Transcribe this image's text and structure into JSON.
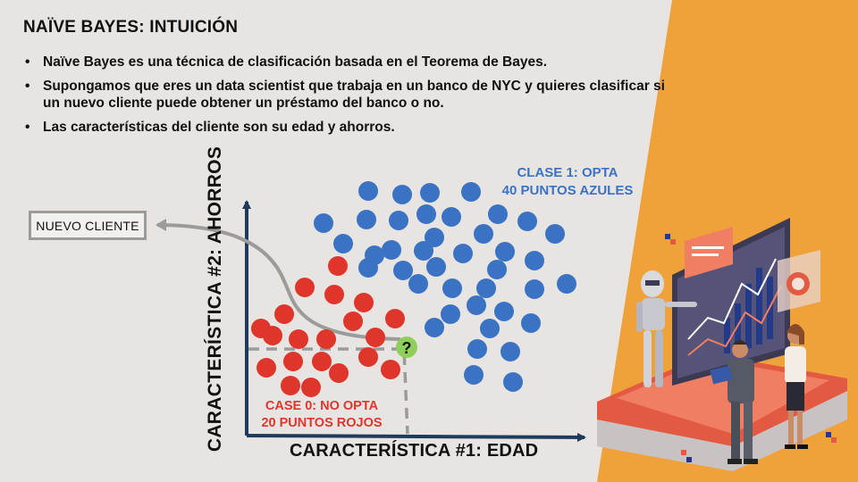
{
  "slide": {
    "title": "NAÏVE BAYES: INTUICIÓN",
    "bullets": [
      "Naïve Bayes es una técnica de clasificación basada en el Teorema de Bayes.",
      "Supongamos que eres un data scientist que trabaja en un banco de NYC y quieres clasificar si un nuevo cliente puede obtener un préstamo del banco o no.",
      "Las características del cliente son su edad y ahorros."
    ]
  },
  "diagram": {
    "new_client_label": "NUEVO CLIENTE",
    "y_axis_label": "CARACTERÍSTICA #2: AHORROS",
    "x_axis_label": "CARACTERÍSTICA #1: EDAD",
    "class1_line1": "CLASE 1: OPTA",
    "class1_line2": "40 PUNTOS AZULES",
    "class0_line1": "CASE 0: NO OPTA",
    "class0_line2": "20 PUNTOS ROJOS",
    "question_mark": "?"
  },
  "colors": {
    "background": "#e7e4e2",
    "orange": "#f0a23a",
    "blue": "#3a73c4",
    "red": "#e0352b",
    "axis": "#1f3b5c",
    "new_point": "#8fce5a"
  }
}
